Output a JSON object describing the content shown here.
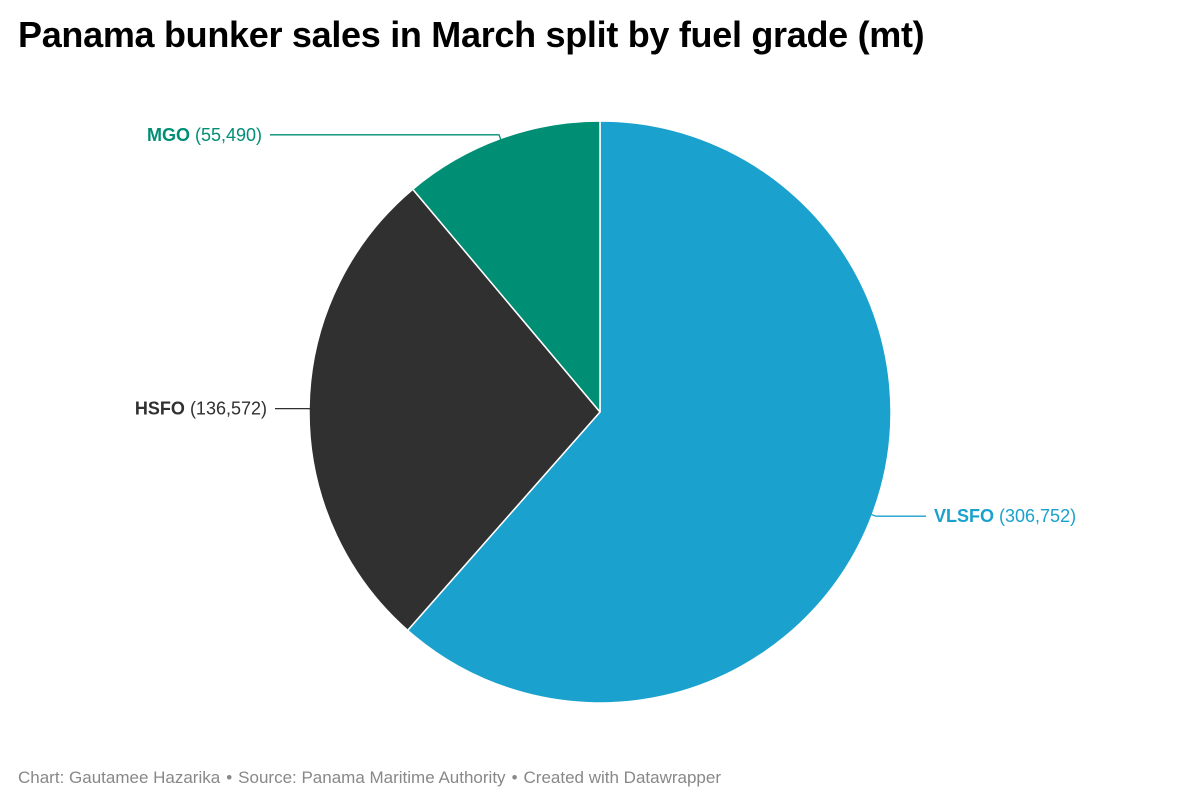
{
  "title": "Panama bunker sales in March split by fuel grade (mt)",
  "chart_data": {
    "type": "pie",
    "title": "Panama bunker sales in March split by fuel grade (mt)",
    "start_angle_deg": 0,
    "direction": "clockwise",
    "slices": [
      {
        "label": "VLSFO",
        "value": 306752,
        "display": "(306,752)",
        "color": "#1ba1cd",
        "label_side": "right"
      },
      {
        "label": "HSFO",
        "value": 136572,
        "display": "(136,572)",
        "color": "#303030",
        "label_side": "left"
      },
      {
        "label": "MGO",
        "value": 55490,
        "display": "(55,490)",
        "color": "#008f75",
        "label_side": "left"
      }
    ]
  },
  "footer": {
    "chart_credit": "Chart: Gautamee Hazarika",
    "source": "Source: Panama Maritime Authority",
    "created_with": "Created with Datawrapper",
    "separator": "•"
  }
}
